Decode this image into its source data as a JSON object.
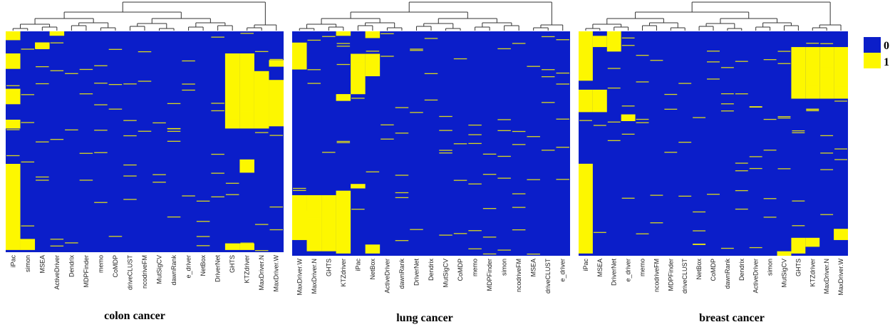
{
  "chart_data": {
    "type": "heatmap",
    "value_range": [
      0,
      1
    ],
    "colors": {
      "0": "#0b1ec9",
      "1": "#fdf700"
    },
    "legend": {
      "items": [
        {
          "value": "0",
          "color": "#0b1ec9"
        },
        {
          "value": "1",
          "color": "#fdf700"
        }
      ],
      "placement": "right"
    },
    "panels": [
      {
        "title": "colon cancer",
        "columns": [
          "iPac",
          "simon",
          "MSEA",
          "ActiveDriver",
          "Dendrix",
          "MDPFinder",
          "memo",
          "CoMDP",
          "driveCLUST",
          "ncodriveFM",
          "MutSigCV",
          "dawnRank",
          "e_driver",
          "NetBox",
          "DriverNet",
          "GHTS",
          "KTZdriver",
          "MaxDriver.N",
          "MaxDriver.W"
        ],
        "yellow_blocks": [
          {
            "col": 0,
            "rows": [
              0.0,
              0.04
            ]
          },
          {
            "col": 0,
            "rows": [
              0.1,
              0.17
            ]
          },
          {
            "col": 0,
            "rows": [
              0.26,
              0.33
            ]
          },
          {
            "col": 0,
            "rows": [
              0.4,
              0.44
            ]
          },
          {
            "col": 0,
            "rows": [
              0.6,
              0.99
            ]
          },
          {
            "col": 1,
            "rows": [
              0.94,
              0.99
            ]
          },
          {
            "col": 2,
            "rows": [
              0.05,
              0.08
            ]
          },
          {
            "col": 3,
            "rows": [
              0.0,
              0.02
            ]
          },
          {
            "col": 15,
            "rows": [
              0.1,
              0.44
            ]
          },
          {
            "col": 16,
            "rows": [
              0.1,
              0.44
            ]
          },
          {
            "col": 16,
            "rows": [
              0.58,
              0.64
            ]
          },
          {
            "col": 17,
            "rows": [
              0.18,
              0.44
            ]
          },
          {
            "col": 18,
            "rows": [
              0.22,
              0.43
            ]
          },
          {
            "col": 18,
            "rows": [
              0.13,
              0.16
            ]
          },
          {
            "col": 15,
            "rows": [
              0.96,
              0.99
            ]
          },
          {
            "col": 16,
            "rows": [
              0.96,
              0.99
            ]
          }
        ]
      },
      {
        "title": "lung cancer",
        "columns": [
          "MaxDriver.W",
          "MaxDriver.N",
          "GHTS",
          "KTZdriver",
          "iPac",
          "NetBox",
          "ActiveDriver",
          "dawnRank",
          "DriverNet",
          "Dendrix",
          "MutSigCV",
          "CoMDP",
          "memo",
          "MDPFinder",
          "simon",
          "ncodriveFM",
          "MSEA",
          "driveCLUST",
          "e_driver"
        ],
        "yellow_blocks": [
          {
            "col": 0,
            "rows": [
              0.05,
              0.17
            ]
          },
          {
            "col": 0,
            "rows": [
              0.73,
              0.93
            ]
          },
          {
            "col": 1,
            "rows": [
              0.73,
              0.98
            ]
          },
          {
            "col": 2,
            "rows": [
              0.73,
              0.98
            ]
          },
          {
            "col": 3,
            "rows": [
              0.71,
              0.99
            ]
          },
          {
            "col": 3,
            "rows": [
              0.28,
              0.31
            ]
          },
          {
            "col": 4,
            "rows": [
              0.1,
              0.28
            ]
          },
          {
            "col": 4,
            "rows": [
              0.68,
              0.7
            ]
          },
          {
            "col": 5,
            "rows": [
              0.1,
              0.2
            ]
          },
          {
            "col": 5,
            "rows": [
              0.0,
              0.03
            ]
          },
          {
            "col": 3,
            "rows": [
              0.0,
              0.02
            ]
          },
          {
            "col": 1,
            "rows": [
              0.8,
              0.93
            ]
          },
          {
            "col": 5,
            "rows": [
              0.95,
              0.99
            ]
          }
        ]
      },
      {
        "title": "breast cancer",
        "columns": [
          "iPac",
          "MSEA",
          "DriverNet",
          "e_driver",
          "memo",
          "ncodriveFM",
          "MDPFinder",
          "driveCLUST",
          "NetBox",
          "CoMDP",
          "dawnRank",
          "Dendrix",
          "ActiveDriver",
          "simon",
          "MutSigCV",
          "GHTS",
          "KTZdriver",
          "MaxDriver.N",
          "MaxDriver.W"
        ],
        "yellow_blocks": [
          {
            "col": 0,
            "rows": [
              0.0,
              0.22
            ]
          },
          {
            "col": 0,
            "rows": [
              0.26,
              0.36
            ]
          },
          {
            "col": 0,
            "rows": [
              0.59,
              0.99
            ]
          },
          {
            "col": 1,
            "rows": [
              0.26,
              0.36
            ]
          },
          {
            "col": 1,
            "rows": [
              0.02,
              0.07
            ]
          },
          {
            "col": 2,
            "rows": [
              0.0,
              0.09
            ]
          },
          {
            "col": 3,
            "rows": [
              0.37,
              0.4
            ]
          },
          {
            "col": 15,
            "rows": [
              0.07,
              0.3
            ]
          },
          {
            "col": 16,
            "rows": [
              0.07,
              0.3
            ]
          },
          {
            "col": 17,
            "rows": [
              0.07,
              0.3
            ]
          },
          {
            "col": 18,
            "rows": [
              0.07,
              0.3
            ]
          },
          {
            "col": 15,
            "rows": [
              0.92,
              0.99
            ]
          },
          {
            "col": 16,
            "rows": [
              0.92,
              0.96
            ]
          },
          {
            "col": 18,
            "rows": [
              0.88,
              0.93
            ]
          },
          {
            "col": 14,
            "rows": [
              0.98,
              1.0
            ]
          }
        ]
      }
    ]
  }
}
